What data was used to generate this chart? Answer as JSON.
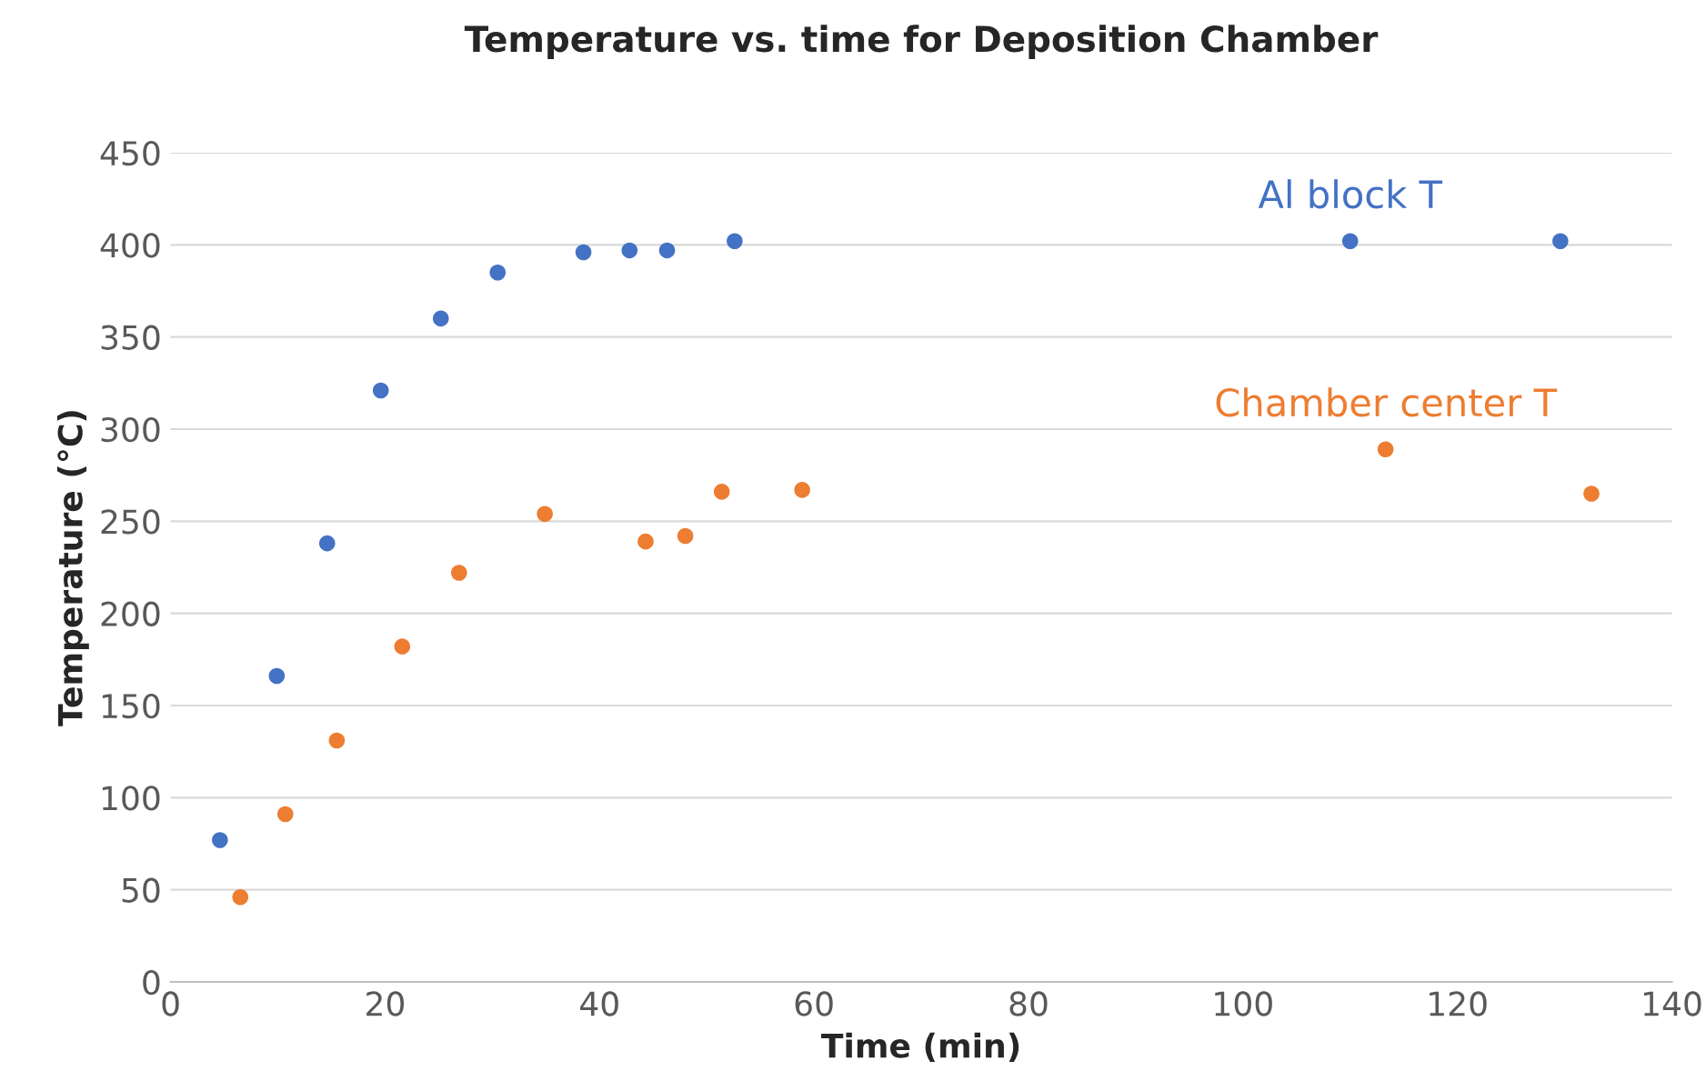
{
  "chart_data": {
    "type": "scatter",
    "title": "Temperature vs. time for Deposition Chamber",
    "xlabel": "Time (min)",
    "ylabel": "Temperature (°C)",
    "series": [
      {
        "name": "Al block T",
        "color": "#4472c4",
        "x": [
          4.6,
          9.9,
          14.6,
          19.6,
          25.2,
          30.5,
          38.5,
          42.8,
          46.3,
          52.6,
          110,
          129.6
        ],
        "values": [
          77,
          166,
          238,
          321,
          360,
          385,
          396,
          397,
          397,
          402,
          402,
          402
        ]
      },
      {
        "name": "Chamber center T",
        "color": "#ed7d31",
        "x": [
          6.5,
          10.7,
          15.5,
          21.6,
          26.9,
          34.9,
          44.3,
          48.0,
          51.4,
          58.9,
          113.3,
          132.5
        ],
        "values": [
          46,
          91,
          131,
          182,
          222,
          254,
          239,
          242,
          266,
          267,
          289,
          265
        ]
      }
    ],
    "xlim": [
      0,
      140
    ],
    "xticks": [
      0,
      20,
      40,
      60,
      80,
      100,
      120,
      140
    ],
    "ylim": [
      0,
      450
    ],
    "yticks": [
      0,
      50,
      100,
      150,
      200,
      250,
      300,
      350,
      400,
      450
    ],
    "grid": "y",
    "marker": "circle"
  }
}
